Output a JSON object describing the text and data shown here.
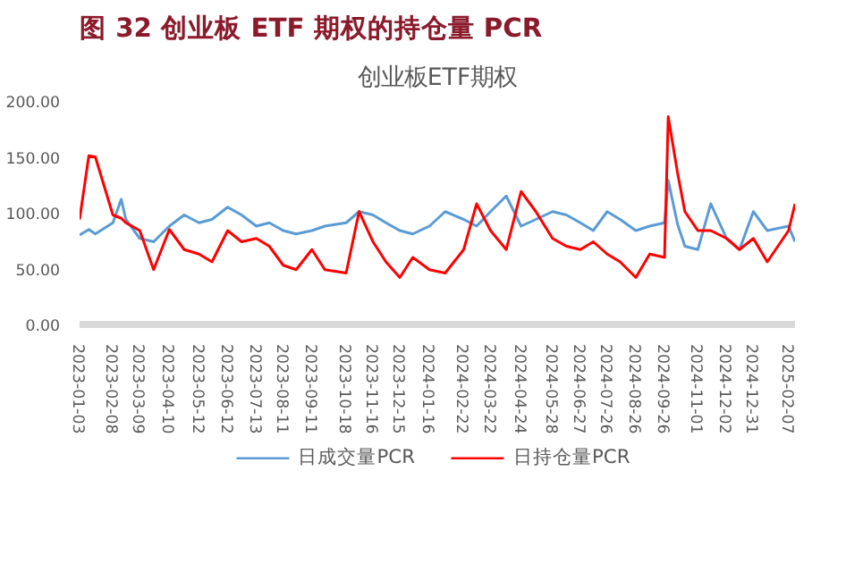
{
  "chart_data": {
    "type": "line",
    "title": "图 32 创业板 ETF 期权的持仓量 PCR",
    "subtitle": "创业板ETF期权",
    "x": [
      "2023-01-03",
      "2023-01-13",
      "2023-01-20",
      "2023-02-08",
      "2023-02-17",
      "2023-02-22",
      "2023-03-09",
      "2023-03-24",
      "2023-04-10",
      "2023-04-26",
      "2023-05-12",
      "2023-05-26",
      "2023-06-12",
      "2023-06-27",
      "2023-07-13",
      "2023-07-27",
      "2023-08-11",
      "2023-08-25",
      "2023-09-11",
      "2023-09-25",
      "2023-10-18",
      "2023-11-01",
      "2023-11-16",
      "2023-11-30",
      "2023-12-15",
      "2023-12-29",
      "2024-01-16",
      "2024-02-02",
      "2024-02-22",
      "2024-03-07",
      "2024-03-22",
      "2024-04-08",
      "2024-04-24",
      "2024-05-10",
      "2024-05-28",
      "2024-06-12",
      "2024-06-27",
      "2024-07-11",
      "2024-07-26",
      "2024-08-09",
      "2024-08-26",
      "2024-09-10",
      "2024-09-26",
      "2024-09-30",
      "2024-10-10",
      "2024-10-18",
      "2024-11-01",
      "2024-11-15",
      "2024-12-02",
      "2024-12-16",
      "2024-12-31",
      "2025-01-15",
      "2025-02-07",
      "2025-02-14"
    ],
    "series": [
      {
        "name": "日成交量PCR",
        "color": "#5b9bd5",
        "values": [
          80,
          85,
          81,
          91,
          112,
          94,
          77,
          74,
          88,
          98,
          91,
          94,
          105,
          98,
          88,
          91,
          84,
          81,
          84,
          88,
          91,
          101,
          98,
          91,
          84,
          81,
          88,
          101,
          94,
          88,
          101,
          115,
          88,
          94,
          101,
          98,
          91,
          84,
          101,
          94,
          84,
          88,
          91,
          129,
          90,
          70,
          67,
          108,
          77,
          67,
          101,
          84,
          88,
          74
        ]
      },
      {
        "name": "日持仓量PCR",
        "color": "#ff0000",
        "values": [
          94,
          151,
          150,
          98,
          95,
          91,
          84,
          49,
          85,
          67,
          63,
          56,
          84,
          74,
          77,
          70,
          53,
          49,
          67,
          49,
          46,
          101,
          74,
          56,
          42,
          60,
          49,
          46,
          67,
          108,
          84,
          67,
          119,
          101,
          77,
          70,
          67,
          74,
          63,
          56,
          42,
          63,
          60,
          186,
          136,
          101,
          84,
          84,
          77,
          67,
          77,
          56,
          84,
          108
        ]
      }
    ],
    "xlim": [
      "2023-01-03",
      "2025-02-14"
    ],
    "xticks": [
      "2023-01-03",
      "2023-02-08",
      "2023-03-09",
      "2023-04-10",
      "2023-05-12",
      "2023-06-12",
      "2023-07-13",
      "2023-08-11",
      "2023-09-11",
      "2023-10-18",
      "2023-11-16",
      "2023-12-15",
      "2024-01-16",
      "2024-02-22",
      "2024-03-22",
      "2024-04-24",
      "2024-05-28",
      "2024-06-27",
      "2024-07-26",
      "2024-08-26",
      "2024-09-26",
      "2024-11-01",
      "2024-12-02",
      "2024-12-31",
      "2025-02-07"
    ],
    "ylim": [
      0,
      200
    ],
    "yticks": [
      {
        "value": 0,
        "label": "0.00"
      },
      {
        "value": 50,
        "label": "50.00"
      },
      {
        "value": 100,
        "label": "100.00"
      },
      {
        "value": 150,
        "label": "150.00"
      },
      {
        "value": 200,
        "label": "200.00"
      }
    ],
    "legend": "bottom",
    "grid": false,
    "marker": "none",
    "line_style": "solid"
  }
}
